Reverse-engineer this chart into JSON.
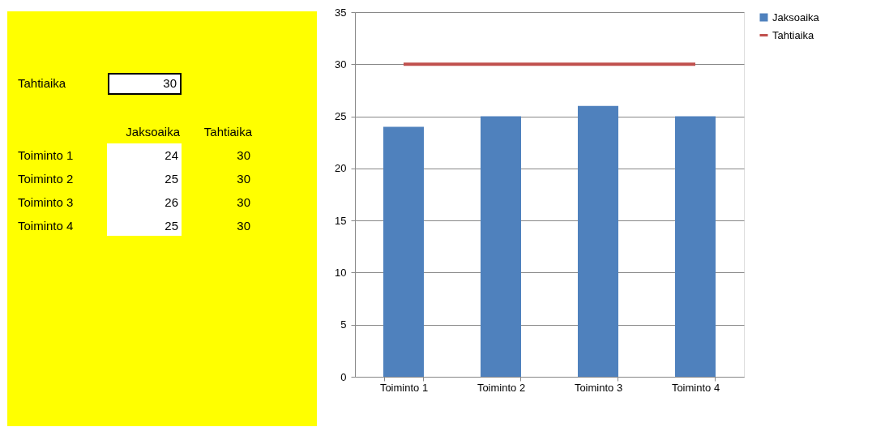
{
  "chart_data": [
    {
      "type": "other",
      "annotations": [
        "Tahtiaika",
        "30",
        "Jaksoaika",
        "Tahtiaika",
        "Toiminto 1",
        "24",
        "30",
        "Toiminto 2",
        "25",
        "30",
        "Toiminto 3",
        "26",
        "30",
        "Toiminto 4",
        "25",
        "30"
      ]
    },
    {
      "type": "bar",
      "categories": [
        "Toiminto 1",
        "Toiminto 2",
        "Toiminto 3",
        "Toiminto 4"
      ],
      "series": [
        {
          "name": "Jaksoaika",
          "type": "bar",
          "color": "#4f81bd",
          "values": [
            24,
            25,
            26,
            25
          ]
        },
        {
          "name": "Tahtiaika",
          "type": "line",
          "color": "#c0504d",
          "values": [
            30,
            30,
            30,
            30
          ]
        }
      ],
      "ylim": [
        0,
        35
      ],
      "yticks": [
        0,
        5,
        10,
        15,
        20,
        25,
        30,
        35
      ],
      "grid": "y",
      "legend": "right"
    }
  ]
}
